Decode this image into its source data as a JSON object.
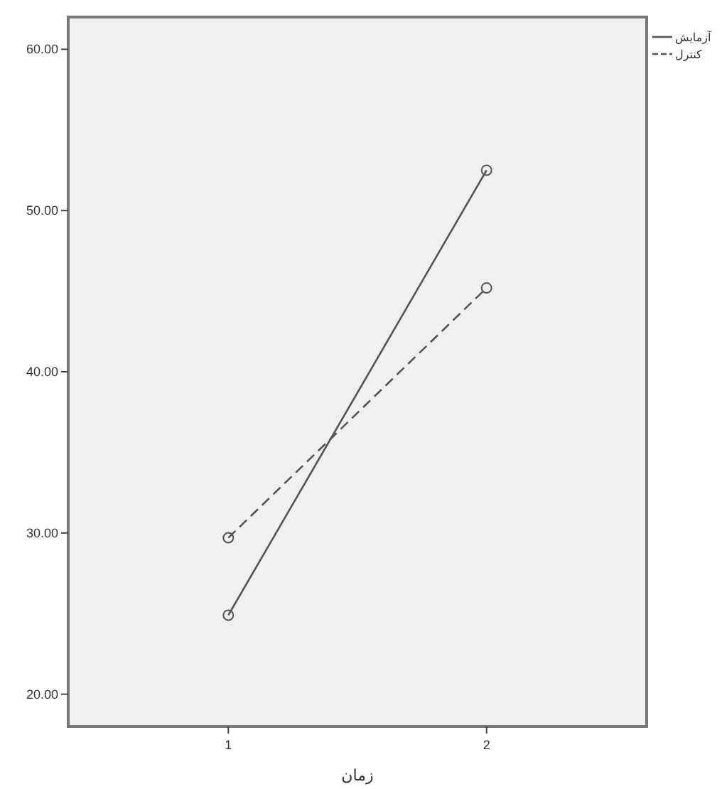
{
  "chart_data": {
    "type": "line",
    "xlabel": "زمان",
    "categories": [
      "1",
      "2"
    ],
    "series": [
      {
        "name": "آزمایش",
        "color": "#555555",
        "values": [
          24.9,
          52.5
        ],
        "line_style": "solid"
      },
      {
        "name": "کنترل",
        "color": "#555555",
        "values": [
          29.7,
          45.2
        ],
        "line_style": "dashed"
      }
    ],
    "ylim": [
      18,
      62
    ],
    "yticks": [
      {
        "value": 20,
        "label": "20.00"
      },
      {
        "value": 30,
        "label": "30.00"
      },
      {
        "value": 40,
        "label": "40.00"
      },
      {
        "value": 50,
        "label": "50.00"
      },
      {
        "value": 60,
        "label": "60.00"
      }
    ],
    "marker": "circle",
    "legend": "top right",
    "grid": false
  }
}
